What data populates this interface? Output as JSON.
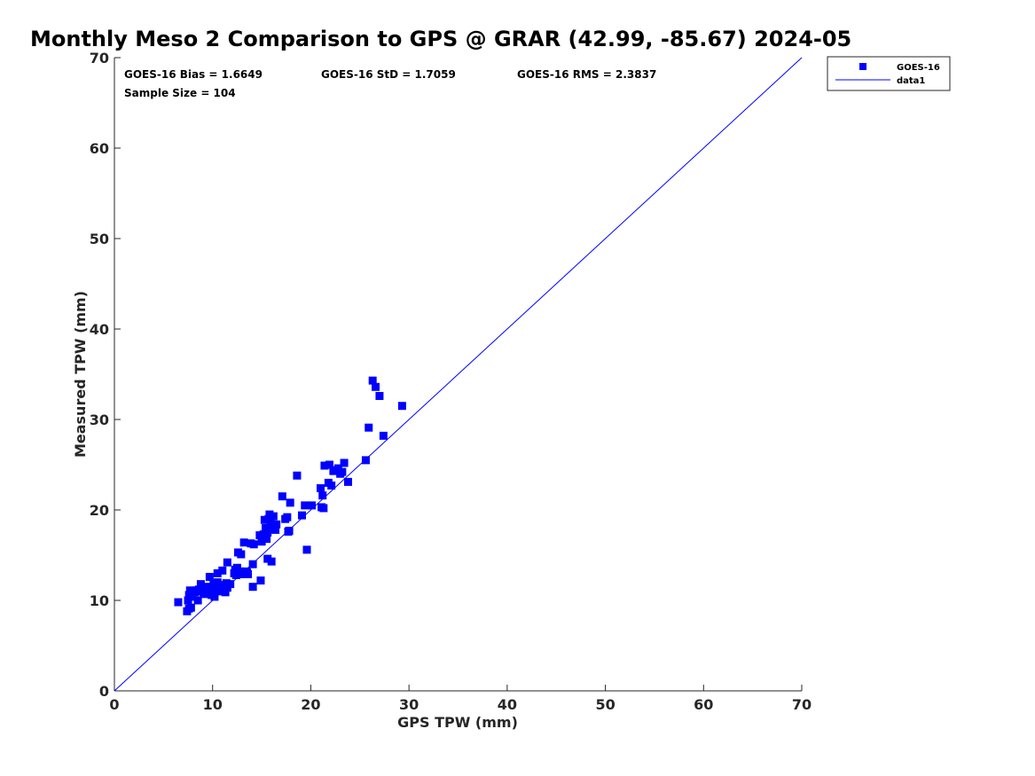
{
  "chart_data": {
    "type": "scatter",
    "title": "Monthly Meso 2 Comparison to GPS @ GRAR (42.99, -85.67) 2024-05",
    "xlabel": "GPS TPW (mm)",
    "ylabel": "Measured TPW (mm)",
    "xlim": [
      0,
      70
    ],
    "ylim": [
      0,
      70
    ],
    "xticks": [
      "0",
      "10",
      "20",
      "30",
      "40",
      "50",
      "60",
      "70"
    ],
    "yticks": [
      "0",
      "10",
      "20",
      "30",
      "40",
      "50",
      "60",
      "70"
    ],
    "grid": false,
    "legend_position": "top-right-outside",
    "stats": {
      "bias": "GOES-16 Bias = 1.6649",
      "std": "GOES-16 StD = 1.7059",
      "rms": "GOES-16 RMS = 2.3837",
      "sample": "Sample Size = 104"
    },
    "series": [
      {
        "name": "GOES-16",
        "marker": "square",
        "color": "#0000ff",
        "points": [
          [
            6.5,
            9.8
          ],
          [
            7.4,
            8.8
          ],
          [
            7.6,
            9.1
          ],
          [
            7.8,
            9.2
          ],
          [
            7.5,
            10.0
          ],
          [
            7.6,
            10.6
          ],
          [
            7.9,
            10.4
          ],
          [
            8.0,
            11.0
          ],
          [
            7.7,
            11.1
          ],
          [
            8.2,
            10.9
          ],
          [
            8.5,
            10.0
          ],
          [
            8.6,
            11.2
          ],
          [
            8.8,
            11.8
          ],
          [
            9.0,
            11.0
          ],
          [
            9.1,
            10.7
          ],
          [
            9.3,
            11.5
          ],
          [
            9.4,
            10.9
          ],
          [
            9.5,
            11.4
          ],
          [
            9.7,
            12.6
          ],
          [
            9.8,
            11.0
          ],
          [
            9.9,
            10.6
          ],
          [
            10.0,
            11.2
          ],
          [
            10.1,
            11.8
          ],
          [
            10.2,
            10.4
          ],
          [
            10.3,
            11.6
          ],
          [
            10.5,
            12.0
          ],
          [
            10.6,
            11.0
          ],
          [
            10.8,
            11.6
          ],
          [
            10.5,
            13.0
          ],
          [
            11.0,
            13.3
          ],
          [
            11.2,
            11.7
          ],
          [
            11.3,
            10.9
          ],
          [
            11.4,
            11.9
          ],
          [
            11.5,
            14.2
          ],
          [
            11.5,
            11.4
          ],
          [
            11.8,
            11.8
          ],
          [
            12.2,
            13.0
          ],
          [
            12.4,
            12.8
          ],
          [
            12.5,
            13.6
          ],
          [
            12.6,
            15.3
          ],
          [
            12.8,
            13.2
          ],
          [
            12.9,
            15.1
          ],
          [
            13.0,
            12.9
          ],
          [
            13.2,
            16.4
          ],
          [
            13.4,
            13.2
          ],
          [
            13.5,
            13.1
          ],
          [
            13.6,
            12.9
          ],
          [
            13.9,
            16.3
          ],
          [
            14.1,
            14.0
          ],
          [
            14.2,
            16.2
          ],
          [
            14.1,
            11.5
          ],
          [
            14.8,
            17.2
          ],
          [
            14.9,
            12.2
          ],
          [
            15.0,
            16.5
          ],
          [
            15.2,
            17.3
          ],
          [
            15.3,
            18.9
          ],
          [
            15.4,
            18.0
          ],
          [
            15.5,
            16.8
          ],
          [
            15.6,
            17.5
          ],
          [
            15.7,
            19.0
          ],
          [
            15.8,
            19.5
          ],
          [
            15.9,
            18.5
          ],
          [
            16.0,
            14.3
          ],
          [
            15.6,
            14.6
          ],
          [
            16.1,
            18.0
          ],
          [
            16.2,
            19.3
          ],
          [
            16.4,
            17.8
          ],
          [
            16.5,
            18.4
          ],
          [
            17.1,
            21.5
          ],
          [
            17.4,
            19.0
          ],
          [
            17.6,
            19.2
          ],
          [
            17.8,
            17.7
          ],
          [
            17.9,
            20.8
          ],
          [
            17.7,
            17.6
          ],
          [
            18.6,
            23.8
          ],
          [
            19.1,
            19.4
          ],
          [
            19.4,
            20.5
          ],
          [
            19.6,
            15.6
          ],
          [
            20.1,
            20.5
          ],
          [
            21.0,
            22.4
          ],
          [
            21.1,
            20.3
          ],
          [
            21.2,
            21.6
          ],
          [
            21.3,
            20.2
          ],
          [
            21.4,
            24.9
          ],
          [
            21.8,
            23.0
          ],
          [
            21.9,
            25.0
          ],
          [
            22.1,
            22.7
          ],
          [
            22.3,
            24.3
          ],
          [
            22.8,
            24.6
          ],
          [
            23.0,
            24.0
          ],
          [
            23.2,
            24.2
          ],
          [
            23.4,
            25.2
          ],
          [
            23.8,
            23.1
          ],
          [
            25.6,
            25.5
          ],
          [
            25.9,
            29.1
          ],
          [
            26.3,
            34.3
          ],
          [
            26.6,
            33.6
          ],
          [
            27.0,
            32.6
          ],
          [
            27.4,
            28.2
          ],
          [
            29.3,
            31.5
          ],
          [
            22.5,
            24.4
          ],
          [
            12.3,
            13.4
          ],
          [
            9.2,
            10.8
          ],
          [
            8.3,
            11.1
          ]
        ]
      },
      {
        "name": "data1",
        "type": "line",
        "color": "#0000ff",
        "x": [
          0,
          70
        ],
        "y": [
          0,
          70
        ]
      }
    ]
  }
}
